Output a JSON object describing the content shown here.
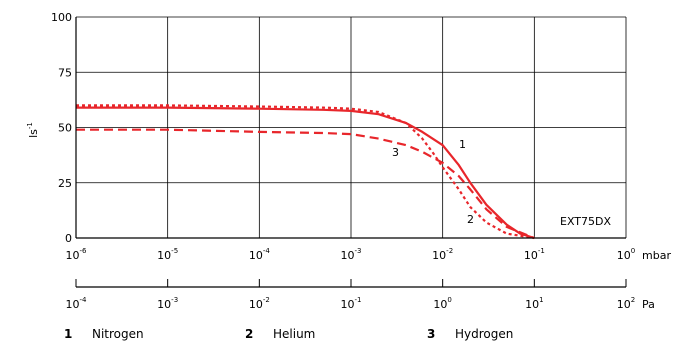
{
  "chart_data": {
    "type": "line",
    "ylabel": "ls",
    "ylabel_exponent": "-1",
    "ylim": [
      0,
      100
    ],
    "y_ticks": [
      "0",
      "25",
      "50",
      "75",
      "100"
    ],
    "x_scale": "log",
    "x_unit": "mbar",
    "x_ticks": [
      {
        "base": "10",
        "exp": "-6"
      },
      {
        "base": "10",
        "exp": "-5"
      },
      {
        "base": "10",
        "exp": "-4"
      },
      {
        "base": "10",
        "exp": "-3"
      },
      {
        "base": "10",
        "exp": "-2"
      },
      {
        "base": "10",
        "exp": "-1"
      },
      {
        "base": "10",
        "exp": "0"
      }
    ],
    "x2_unit": "Pa",
    "x2_ticks": [
      {
        "base": "10",
        "exp": "-4"
      },
      {
        "base": "10",
        "exp": "-3"
      },
      {
        "base": "10",
        "exp": "-2"
      },
      {
        "base": "10",
        "exp": "-1"
      },
      {
        "base": "10",
        "exp": "0"
      },
      {
        "base": "10",
        "exp": "1"
      },
      {
        "base": "10",
        "exp": "2"
      }
    ],
    "grid": true,
    "annotation": "EXT75DX",
    "series": [
      {
        "label": "1",
        "style": "solid",
        "color": "#e8262b",
        "x": [
          1e-06,
          1e-05,
          0.0001,
          0.0005,
          0.001,
          0.002,
          0.004,
          0.006,
          0.01,
          0.015,
          0.02,
          0.03,
          0.05,
          0.07,
          0.1
        ],
        "y": [
          59,
          59,
          58.5,
          58,
          57.5,
          56,
          52,
          48,
          42,
          33,
          25,
          15,
          6,
          2,
          0
        ]
      },
      {
        "label": "2",
        "style": "dotted",
        "color": "#e8262b",
        "x": [
          1e-06,
          1e-05,
          0.0001,
          0.0005,
          0.001,
          0.002,
          0.004,
          0.006,
          0.008,
          0.01,
          0.015,
          0.02,
          0.03,
          0.05,
          0.1
        ],
        "y": [
          60,
          60,
          59.5,
          59,
          58.5,
          57,
          52,
          45,
          38,
          32,
          22,
          14,
          7,
          2,
          0
        ]
      },
      {
        "label": "3",
        "style": "dashed",
        "color": "#e8262b",
        "x": [
          1e-06,
          1e-05,
          0.0001,
          0.0005,
          0.001,
          0.002,
          0.004,
          0.006,
          0.01,
          0.015,
          0.02,
          0.03,
          0.05,
          0.1
        ],
        "y": [
          49,
          49,
          48,
          47.5,
          47,
          45,
          42,
          39,
          34,
          28,
          22,
          13,
          5,
          0
        ]
      }
    ],
    "legend": [
      {
        "num": "1",
        "name": "Nitrogen"
      },
      {
        "num": "2",
        "name": "Helium"
      },
      {
        "num": "3",
        "name": "Hydrogen"
      }
    ]
  }
}
